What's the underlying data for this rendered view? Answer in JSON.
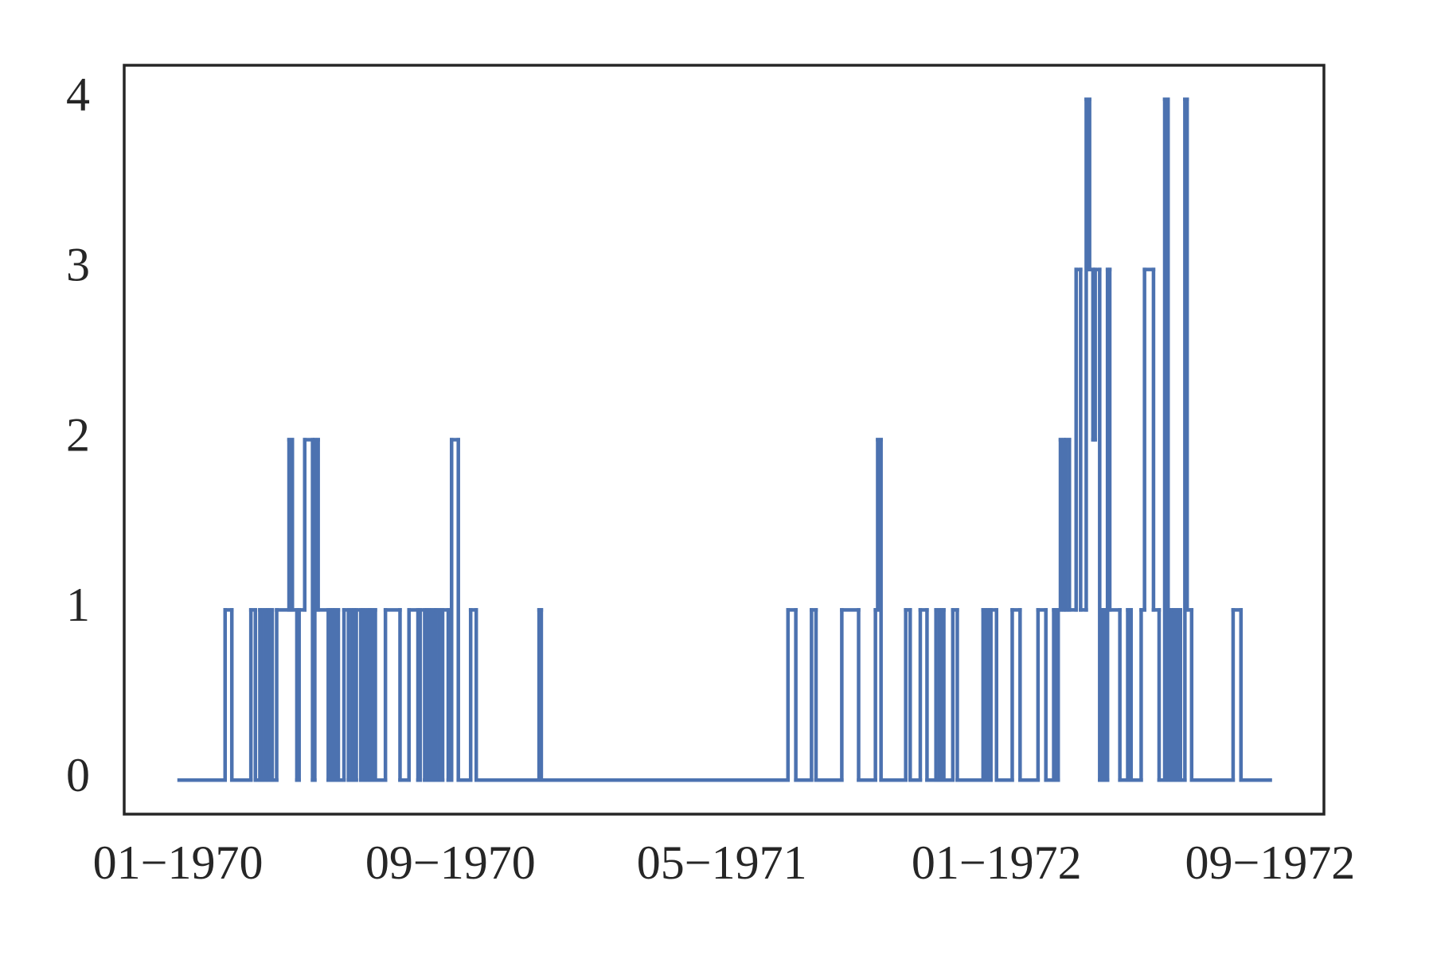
{
  "chart_data": {
    "type": "line",
    "drawstyle": "steps-post",
    "color": "#4c72b0",
    "x": [
      1,
      42,
      48,
      65,
      69,
      73,
      75,
      78,
      80,
      82,
      84,
      88,
      99,
      102,
      106,
      108,
      113,
      120,
      122,
      125,
      134,
      136,
      138,
      140,
      143,
      148,
      152,
      155,
      157,
      159,
      163,
      165,
      167,
      170,
      171,
      173,
      176,
      185,
      198,
      206,
      214,
      216,
      220,
      222,
      224,
      226,
      229,
      230,
      233,
      236,
      241,
      244,
      250,
      261,
      266,
      322,
      324,
      544,
      551,
      565,
      569,
      592,
      607,
      622,
      624,
      627,
      649,
      653,
      662,
      668,
      676,
      679,
      681,
      683,
      691,
      695,
      718,
      720,
      722,
      724,
      725,
      730,
      744,
      751,
      767,
      774,
      781,
      783,
      785,
      787,
      790,
      792,
      795,
      801,
      805,
      810,
      813,
      816,
      818,
      822,
      824,
      826,
      829,
      831,
      840,
      847,
      850,
      859,
      862,
      870,
      875,
      880,
      883,
      884,
      886,
      888,
      890,
      892,
      894,
      898,
      900,
      904,
      941,
      948,
      974
    ],
    "values": [
      0,
      1,
      0,
      1,
      0,
      1,
      0,
      1,
      0,
      1,
      0,
      1,
      2,
      1,
      0,
      1,
      2,
      0,
      2,
      1,
      0,
      1,
      0,
      1,
      0,
      1,
      0,
      1,
      0,
      1,
      0,
      1,
      0,
      1,
      0,
      1,
      0,
      1,
      0,
      1,
      0,
      1,
      0,
      1,
      0,
      1,
      0,
      1,
      0,
      1,
      0,
      2,
      0,
      1,
      0,
      1,
      0,
      1,
      0,
      1,
      0,
      1,
      0,
      1,
      2,
      0,
      1,
      0,
      1,
      0,
      1,
      0,
      1,
      0,
      1,
      0,
      1,
      0,
      1,
      0,
      1,
      0,
      1,
      0,
      1,
      0,
      1,
      0,
      1,
      2,
      1,
      2,
      1,
      3,
      1,
      4,
      3,
      2,
      3,
      0,
      1,
      0,
      3,
      1,
      0,
      1,
      0,
      1,
      3,
      1,
      0,
      4,
      0,
      1,
      0,
      1,
      0,
      1,
      0,
      4,
      1,
      0,
      1,
      0,
      0
    ],
    "xlim": [
      -48,
      1022
    ],
    "xticks": [
      {
        "value": 0,
        "label": "01−1970"
      },
      {
        "value": 243,
        "label": "09−1970"
      },
      {
        "value": 485,
        "label": "05−1971"
      },
      {
        "value": 730,
        "label": "01−1972"
      },
      {
        "value": 974,
        "label": "09−1972"
      }
    ],
    "ylim": [
      -0.2,
      4.2
    ],
    "yticks": [
      0,
      1,
      2,
      3,
      4
    ],
    "grid": false
  }
}
